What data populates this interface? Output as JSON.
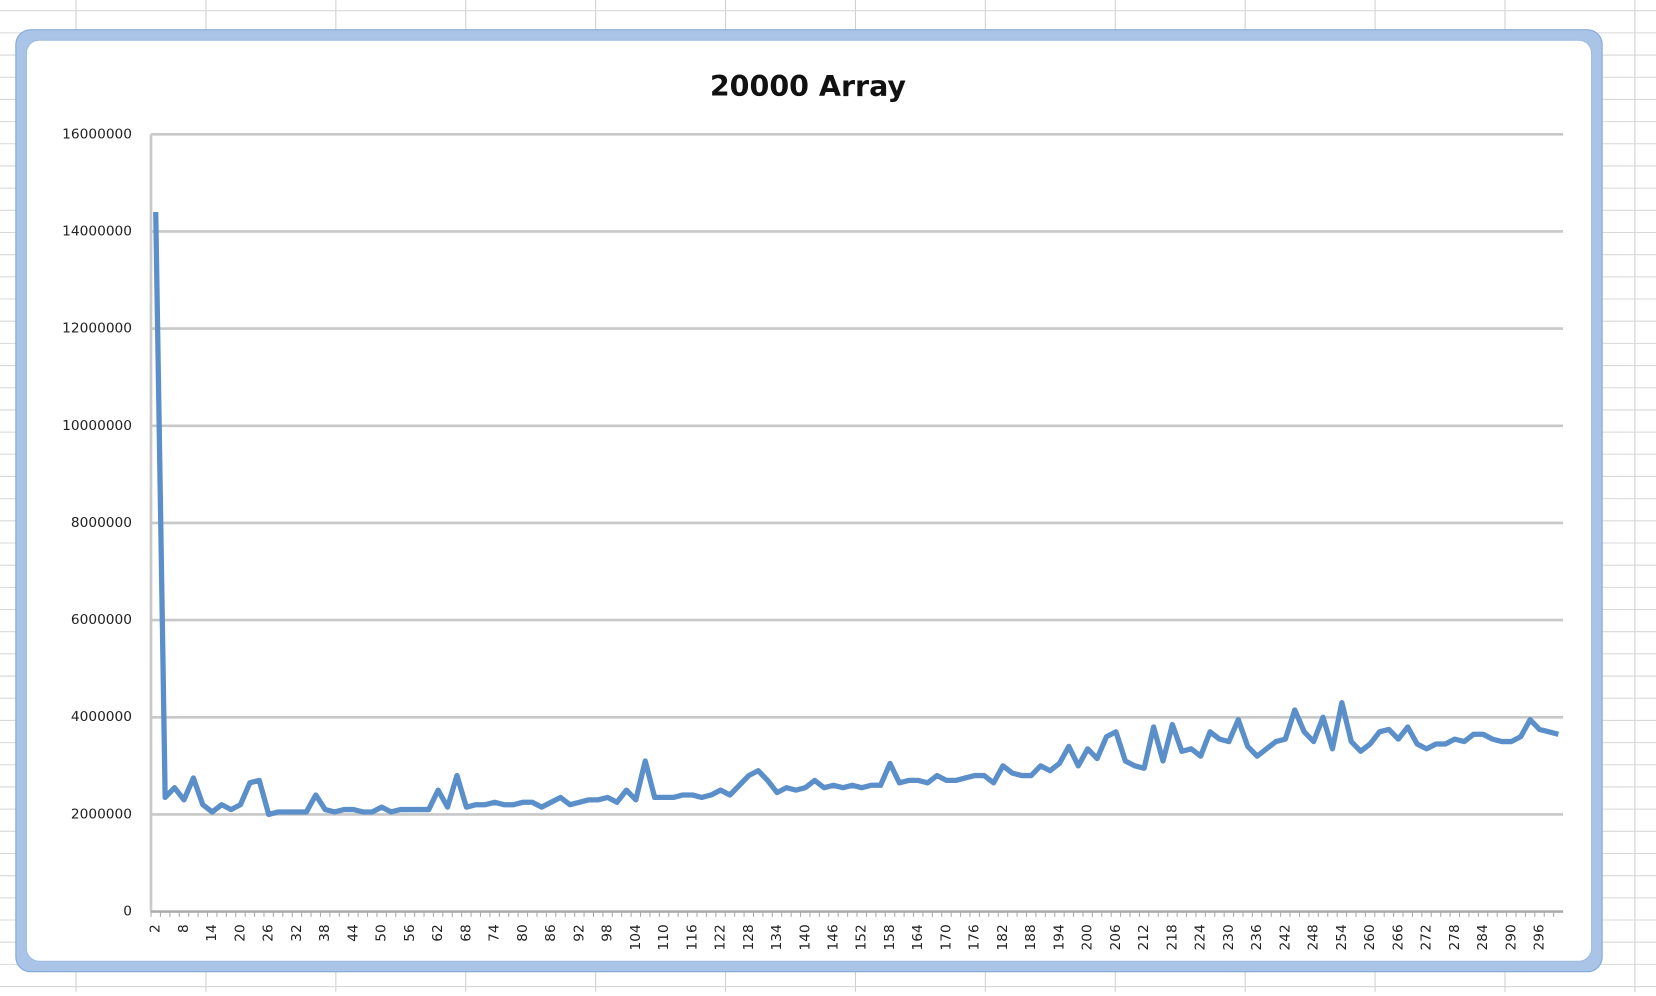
{
  "chart_data": {
    "type": "line",
    "title": "20000 Array",
    "categories": [
      2,
      null,
      null,
      8,
      null,
      null,
      14,
      null,
      null,
      20,
      null,
      null,
      26,
      null,
      null,
      32,
      null,
      null,
      38,
      null,
      null,
      44,
      null,
      null,
      50,
      null,
      null,
      56,
      null,
      null,
      62,
      null,
      null,
      68,
      null,
      null,
      74,
      null,
      null,
      80,
      null,
      null,
      86,
      null,
      null,
      92,
      null,
      null,
      98,
      null,
      null,
      104,
      null,
      null,
      110,
      null,
      null,
      116,
      null,
      null,
      122,
      null,
      null,
      128,
      null,
      null,
      134,
      null,
      null,
      140,
      null,
      null,
      146,
      null,
      null,
      152,
      null,
      null,
      158,
      null,
      null,
      164,
      null,
      null,
      170,
      null,
      null,
      176,
      null,
      null,
      182,
      null,
      null,
      188,
      null,
      null,
      194,
      null,
      null,
      200,
      null,
      null,
      206,
      null,
      null,
      212,
      null,
      null,
      218,
      null,
      null,
      224,
      null,
      null,
      230,
      null,
      null,
      236,
      null,
      null,
      242,
      null,
      null,
      248,
      null,
      null,
      254,
      null,
      null,
      260,
      null,
      null,
      266,
      null,
      null,
      272,
      null,
      null,
      278,
      null,
      null,
      284,
      null,
      null,
      290,
      null,
      null,
      296,
      null,
      null
    ],
    "series": [
      {
        "color": "#5b8fc9",
        "values": [
          14400000,
          2350000,
          2550000,
          2300000,
          2750000,
          2200000,
          2050000,
          2200000,
          2100000,
          2200000,
          2650000,
          2700000,
          2000000,
          2050000,
          2050000,
          2050000,
          2050000,
          2400000,
          2100000,
          2050000,
          2100000,
          2100000,
          2050000,
          2050000,
          2150000,
          2050000,
          2100000,
          2100000,
          2100000,
          2100000,
          2500000,
          2150000,
          2800000,
          2150000,
          2200000,
          2200000,
          2250000,
          2200000,
          2200000,
          2250000,
          2250000,
          2150000,
          2250000,
          2350000,
          2200000,
          2250000,
          2300000,
          2300000,
          2350000,
          2250000,
          2500000,
          2300000,
          3100000,
          2350000,
          2350000,
          2350000,
          2400000,
          2400000,
          2350000,
          2400000,
          2500000,
          2400000,
          2600000,
          2800000,
          2900000,
          2700000,
          2450000,
          2550000,
          2500000,
          2550000,
          2700000,
          2550000,
          2600000,
          2550000,
          2600000,
          2550000,
          2600000,
          2600000,
          3050000,
          2650000,
          2700000,
          2700000,
          2650000,
          2800000,
          2700000,
          2700000,
          2750000,
          2800000,
          2800000,
          2650000,
          3000000,
          2850000,
          2800000,
          2800000,
          3000000,
          2900000,
          3050000,
          3400000,
          3000000,
          3350000,
          3150000,
          3600000,
          3700000,
          3100000,
          3000000,
          2950000,
          3800000,
          3100000,
          3850000,
          3300000,
          3350000,
          3200000,
          3700000,
          3550000,
          3500000,
          3950000,
          3400000,
          3200000,
          3350000,
          3500000,
          3550000,
          4150000,
          3700000,
          3500000,
          4000000,
          3350000,
          4300000,
          3500000,
          3300000,
          3450000,
          3700000,
          3750000,
          3550000,
          3800000,
          3450000,
          3350000,
          3450000,
          3450000,
          3550000,
          3500000,
          3650000,
          3650000,
          3550000,
          3500000,
          3500000,
          3600000,
          3950000,
          3750000,
          3700000,
          3650000
        ]
      }
    ],
    "ylim": [
      0,
      16000000
    ],
    "yticks": [
      0,
      2000000,
      4000000,
      6000000,
      8000000,
      10000000,
      12000000,
      14000000,
      16000000
    ],
    "grid": true
  }
}
